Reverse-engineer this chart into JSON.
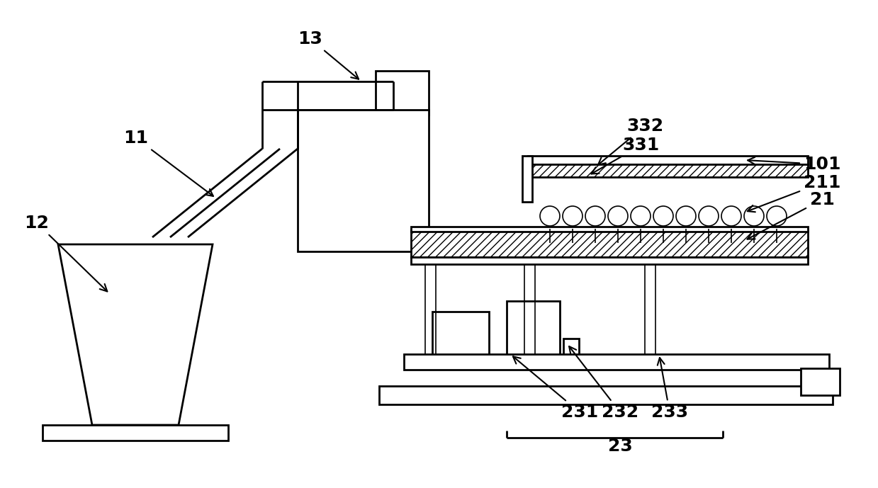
{
  "bg_color": "#ffffff",
  "lc": "#000000",
  "lw": 2.0,
  "tlw": 1.2,
  "fs": 18,
  "fig_w": 12.39,
  "fig_h": 6.89
}
